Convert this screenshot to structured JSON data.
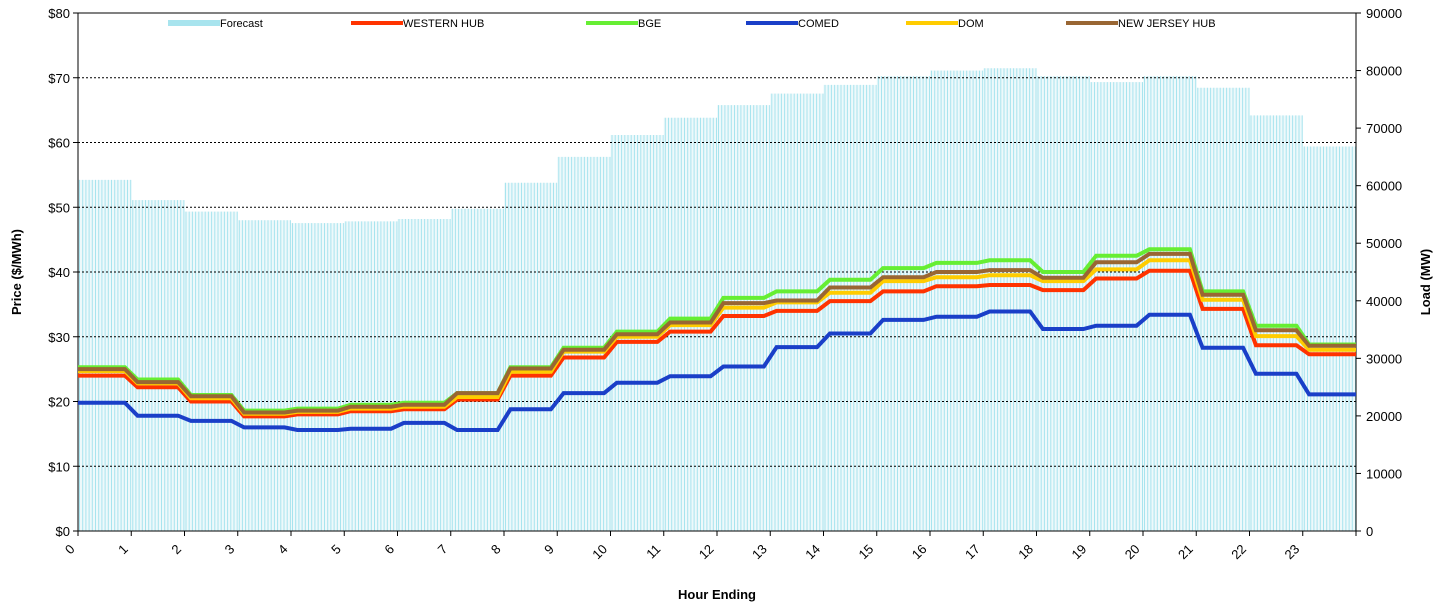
{
  "chart_data": {
    "type": "line",
    "xlabel": "Hour Ending",
    "ylabel_left": "Price ($/MWh)",
    "ylabel_right": "Load (MW)",
    "y_left_range": [
      0,
      80
    ],
    "y_left_ticks": [
      "$0",
      "$10",
      "$20",
      "$30",
      "$40",
      "$50",
      "$60",
      "$70",
      "$80"
    ],
    "y_right_range": [
      0,
      90000
    ],
    "y_right_ticks": [
      "0",
      "10000",
      "20000",
      "30000",
      "40000",
      "50000",
      "60000",
      "70000",
      "80000",
      "90000"
    ],
    "x_ticks": [
      "0",
      "1",
      "2",
      "3",
      "4",
      "5",
      "6",
      "7",
      "8",
      "9",
      "10",
      "11",
      "12",
      "13",
      "14",
      "15",
      "16",
      "17",
      "18",
      "19",
      "20",
      "21",
      "22",
      "23"
    ],
    "legend": [
      "Forecast",
      "WESTERN HUB",
      "BGE",
      "COMED",
      "DOM",
      "NEW JERSEY HUB"
    ],
    "forecast": {
      "name": "Forecast",
      "color": "#a8e4ee",
      "values": [
        61000,
        57500,
        55500,
        54000,
        53500,
        53800,
        54200,
        56000,
        60500,
        65000,
        68800,
        71800,
        74000,
        76000,
        77500,
        79000,
        80000,
        80400,
        79000,
        78000,
        79000,
        77000,
        72200,
        66800
      ]
    },
    "series": [
      {
        "name": "WESTERN HUB",
        "color": "#ff3300",
        "values": [
          24.0,
          22.2,
          20.0,
          17.7,
          18.0,
          18.5,
          18.8,
          20.3,
          24.0,
          26.8,
          29.2,
          30.8,
          33.2,
          34.0,
          35.5,
          37.0,
          37.8,
          38.0,
          37.2,
          39.0,
          40.2,
          34.3,
          28.7,
          27.3
        ]
      },
      {
        "name": "BGE",
        "color": "#66ee33",
        "values": [
          25.3,
          23.4,
          21.0,
          18.6,
          18.9,
          19.5,
          19.8,
          21.3,
          25.3,
          28.3,
          30.8,
          32.8,
          36.0,
          37.0,
          38.8,
          40.6,
          41.4,
          41.8,
          40.0,
          42.5,
          43.5,
          37.0,
          31.7,
          28.8
        ]
      },
      {
        "name": "COMED",
        "color": "#1a3fc8",
        "values": [
          19.8,
          17.8,
          17.0,
          16.0,
          15.6,
          15.8,
          16.7,
          15.6,
          18.8,
          21.3,
          22.9,
          23.9,
          25.4,
          28.4,
          30.5,
          32.6,
          33.1,
          33.9,
          31.2,
          31.7,
          33.4,
          28.3,
          24.3,
          21.1
        ]
      },
      {
        "name": "DOM",
        "color": "#ffcc00",
        "values": [
          24.7,
          22.8,
          20.5,
          18.1,
          18.4,
          18.9,
          19.2,
          20.7,
          24.6,
          27.7,
          30.0,
          31.8,
          34.5,
          35.3,
          36.8,
          38.6,
          39.2,
          39.5,
          38.6,
          40.4,
          41.8,
          35.7,
          30.1,
          28.0
        ]
      },
      {
        "name": "NEW JERSEY HUB",
        "color": "#996633",
        "values": [
          25.0,
          23.0,
          20.8,
          18.3,
          18.6,
          19.2,
          19.5,
          21.3,
          25.1,
          28.0,
          30.4,
          32.2,
          35.2,
          35.6,
          37.6,
          39.2,
          40.0,
          40.3,
          39.1,
          41.5,
          42.8,
          36.5,
          31.0,
          28.6
        ]
      }
    ]
  }
}
